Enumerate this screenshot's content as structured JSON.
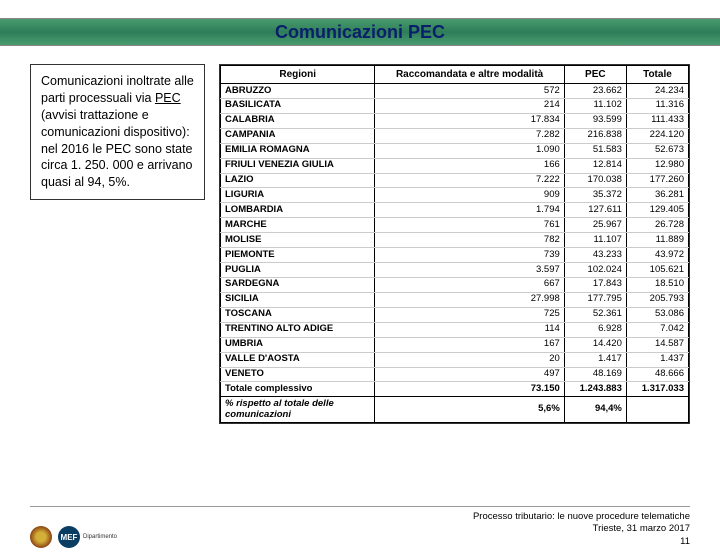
{
  "title": "Comunicazioni PEC",
  "description": {
    "text1": "Comunicazioni inoltrate alle parti processuali via ",
    "underlined": "PEC",
    "text2": " (avvisi trattazione e comunicazioni dispositivo): nel 2016 le PEC sono state circa 1. 250. 000 e arrivano quasi al 94, 5%."
  },
  "table": {
    "headers": [
      "Regioni",
      "Raccomandata e altre modalità",
      "PEC",
      "Totale"
    ],
    "rows": [
      [
        "ABRUZZO",
        "572",
        "23.662",
        "24.234"
      ],
      [
        "BASILICATA",
        "214",
        "11.102",
        "11.316"
      ],
      [
        "CALABRIA",
        "17.834",
        "93.599",
        "111.433"
      ],
      [
        "CAMPANIA",
        "7.282",
        "216.838",
        "224.120"
      ],
      [
        "EMILIA ROMAGNA",
        "1.090",
        "51.583",
        "52.673"
      ],
      [
        "FRIULI VENEZIA GIULIA",
        "166",
        "12.814",
        "12.980"
      ],
      [
        "LAZIO",
        "7.222",
        "170.038",
        "177.260"
      ],
      [
        "LIGURIA",
        "909",
        "35.372",
        "36.281"
      ],
      [
        "LOMBARDIA",
        "1.794",
        "127.611",
        "129.405"
      ],
      [
        "MARCHE",
        "761",
        "25.967",
        "26.728"
      ],
      [
        "MOLISE",
        "782",
        "11.107",
        "11.889"
      ],
      [
        "PIEMONTE",
        "739",
        "43.233",
        "43.972"
      ],
      [
        "PUGLIA",
        "3.597",
        "102.024",
        "105.621"
      ],
      [
        "SARDEGNA",
        "667",
        "17.843",
        "18.510"
      ],
      [
        "SICILIA",
        "27.998",
        "177.795",
        "205.793"
      ],
      [
        "TOSCANA",
        "725",
        "52.361",
        "53.086"
      ],
      [
        "TRENTINO ALTO ADIGE",
        "114",
        "6.928",
        "7.042"
      ],
      [
        "UMBRIA",
        "167",
        "14.420",
        "14.587"
      ],
      [
        "VALLE D'AOSTA",
        "20",
        "1.417",
        "1.437"
      ],
      [
        "VENETO",
        "497",
        "48.169",
        "48.666"
      ]
    ],
    "total_row": [
      "Totale complessivo",
      "73.150",
      "1.243.883",
      "1.317.033"
    ],
    "footer_row": [
      "% rispetto al totale delle comunicazioni",
      "5,6%",
      "94,4%",
      ""
    ]
  },
  "footer": {
    "line1": "Processo tributario: le nuove procedure telematiche",
    "line2": "Trieste, 31 marzo 2017",
    "page": "11",
    "mef_label": "MEF",
    "mef_sub": "Dipartimento"
  },
  "colors": {
    "title_text": "#0a1f6b",
    "bar_gradient_mid": "#2e7d5a"
  }
}
